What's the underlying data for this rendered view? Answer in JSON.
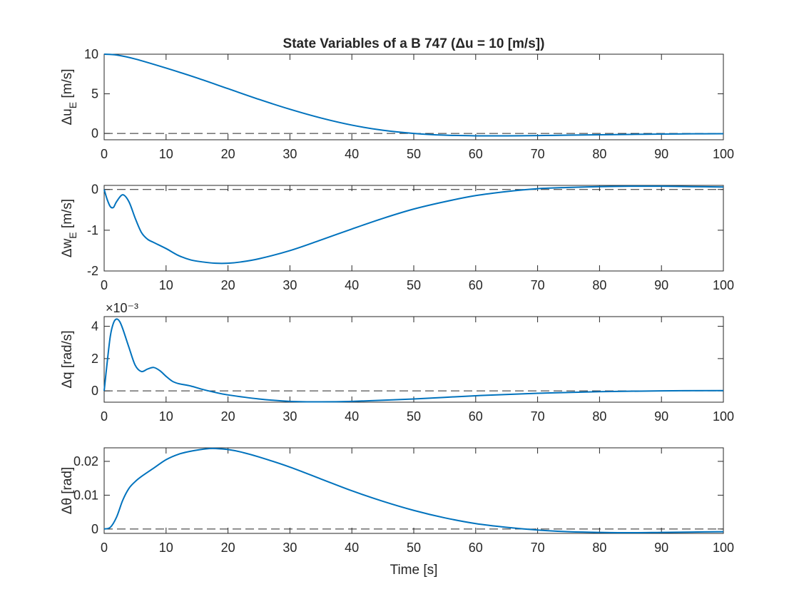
{
  "figure": {
    "title": "State Variables of a B 747 (Δu = 10 [m/s])",
    "xlabel": "Time [s]"
  },
  "colors": {
    "series": "#0072BD",
    "axis": "#262626",
    "reference": "#262626"
  },
  "chart_data": [
    {
      "type": "line",
      "ylabel_main": "Δu",
      "ylabel_sub": "E",
      "ylabel_unit": " [m/s]",
      "xlim": [
        0,
        100
      ],
      "ylim": [
        -0.8,
        10
      ],
      "xticks": [
        0,
        10,
        20,
        30,
        40,
        50,
        60,
        70,
        80,
        90,
        100
      ],
      "yticks": [
        0,
        5,
        10
      ],
      "ytick_labels": [
        "0",
        "5",
        "10"
      ],
      "exponent_label": "",
      "reference_line": 0,
      "grid": false,
      "x": [
        0,
        2,
        5,
        10,
        15,
        20,
        25,
        30,
        35,
        40,
        45,
        50,
        55,
        60,
        65,
        70,
        75,
        80,
        85,
        90,
        95,
        100
      ],
      "y": [
        10,
        9.9,
        9.4,
        8.25,
        7.0,
        5.65,
        4.3,
        3.05,
        1.95,
        1.05,
        0.4,
        0.0,
        -0.22,
        -0.3,
        -0.3,
        -0.27,
        -0.22,
        -0.17,
        -0.12,
        -0.08,
        -0.05,
        -0.03
      ]
    },
    {
      "type": "line",
      "ylabel_main": "Δw",
      "ylabel_sub": "E",
      "ylabel_unit": " [m/s]",
      "xlim": [
        0,
        100
      ],
      "ylim": [
        -2,
        0.1
      ],
      "xticks": [
        0,
        10,
        20,
        30,
        40,
        50,
        60,
        70,
        80,
        90,
        100
      ],
      "yticks": [
        -2,
        -1,
        0
      ],
      "ytick_labels": [
        "-2",
        "-1",
        "0"
      ],
      "exponent_label": "",
      "reference_line": 0,
      "grid": false,
      "x": [
        0,
        0.5,
        1,
        1.5,
        2,
        3,
        4,
        5,
        6,
        7,
        8,
        10,
        12,
        14,
        16,
        18,
        20,
        22,
        25,
        30,
        35,
        40,
        45,
        50,
        55,
        60,
        65,
        70,
        75,
        80,
        85,
        90,
        95,
        100
      ],
      "y": [
        0,
        -0.25,
        -0.42,
        -0.44,
        -0.3,
        -0.13,
        -0.3,
        -0.7,
        -1.05,
        -1.22,
        -1.3,
        -1.45,
        -1.62,
        -1.73,
        -1.78,
        -1.81,
        -1.81,
        -1.78,
        -1.7,
        -1.5,
        -1.24,
        -0.97,
        -0.71,
        -0.48,
        -0.3,
        -0.15,
        -0.05,
        0.02,
        0.05,
        0.07,
        0.08,
        0.08,
        0.07,
        0.06
      ]
    },
    {
      "type": "line",
      "ylabel_main": "Δq",
      "ylabel_sub": "",
      "ylabel_unit": " [rad/s]",
      "xlim": [
        0,
        100
      ],
      "ylim": [
        -0.7,
        4.6
      ],
      "xticks": [
        0,
        10,
        20,
        30,
        40,
        50,
        60,
        70,
        80,
        90,
        100
      ],
      "yticks": [
        0,
        2,
        4
      ],
      "ytick_labels": [
        "0",
        "2",
        "4"
      ],
      "exponent_label": "×10⁻³",
      "reference_line": 0,
      "grid": false,
      "x": [
        0,
        0.5,
        1,
        1.5,
        2,
        2.5,
        3,
        4,
        5,
        6,
        7,
        8,
        9,
        10,
        11,
        12,
        14,
        16,
        18,
        20,
        25,
        30,
        35,
        40,
        50,
        60,
        70,
        80,
        90,
        100
      ],
      "y": [
        0,
        1.8,
        3.4,
        4.2,
        4.45,
        4.3,
        3.85,
        2.7,
        1.6,
        1.2,
        1.35,
        1.45,
        1.25,
        0.9,
        0.6,
        0.45,
        0.3,
        0.08,
        -0.1,
        -0.25,
        -0.5,
        -0.65,
        -0.68,
        -0.65,
        -0.5,
        -0.3,
        -0.15,
        -0.05,
        0.0,
        0.02
      ]
    },
    {
      "type": "line",
      "ylabel_main": "Δθ",
      "ylabel_sub": "",
      "ylabel_unit": " [rad]",
      "xlim": [
        0,
        100
      ],
      "ylim": [
        -0.0013,
        0.024
      ],
      "xticks": [
        0,
        10,
        20,
        30,
        40,
        50,
        60,
        70,
        80,
        90,
        100
      ],
      "yticks": [
        0,
        0.01,
        0.02
      ],
      "ytick_labels": [
        "0",
        "0.01",
        "0.02"
      ],
      "exponent_label": "",
      "reference_line": 0,
      "grid": false,
      "x": [
        0,
        1,
        2,
        3,
        4,
        5,
        6,
        8,
        10,
        12,
        14,
        16,
        17,
        18,
        20,
        22,
        25,
        30,
        35,
        40,
        45,
        50,
        55,
        60,
        65,
        70,
        75,
        80,
        85,
        90,
        95,
        100
      ],
      "y": [
        0,
        0.0005,
        0.0035,
        0.0085,
        0.012,
        0.014,
        0.0155,
        0.018,
        0.0205,
        0.0221,
        0.023,
        0.0236,
        0.0238,
        0.0238,
        0.0235,
        0.0228,
        0.0213,
        0.0183,
        0.0148,
        0.0113,
        0.0082,
        0.0055,
        0.0033,
        0.0016,
        0.0005,
        -0.0003,
        -0.0008,
        -0.001,
        -0.0011,
        -0.001,
        -0.0009,
        -0.0008
      ]
    }
  ]
}
